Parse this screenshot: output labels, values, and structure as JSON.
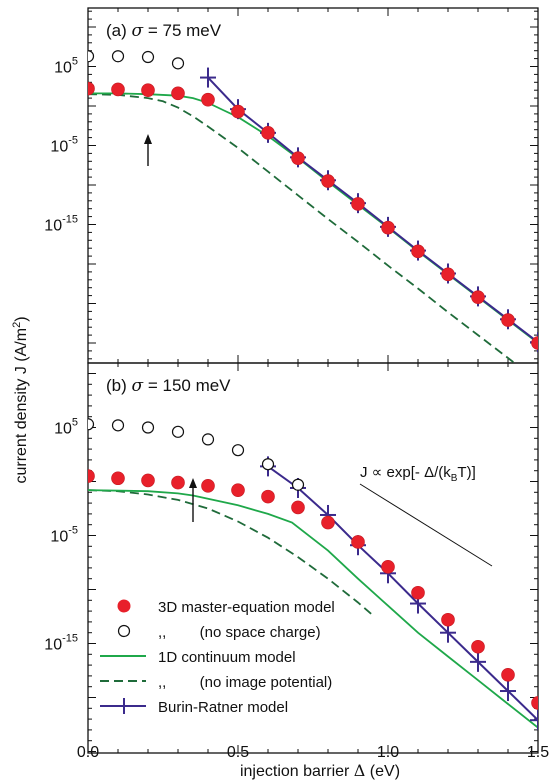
{
  "chart_data": [
    {
      "type": "line",
      "panel_label": "(a) σ = 75 meV",
      "panel_label_prefix": "(a) ",
      "panel_label_sigma": "σ",
      "panel_label_rest": " = 75 meV",
      "x_range": [
        0,
        1.5
      ],
      "y_scale": "log",
      "y_range_log10": [
        -22,
        10
      ],
      "y_tick_exponents": [
        5,
        -5,
        -15
      ],
      "arrow_x": 0.2,
      "series": [
        {
          "key": "me3d",
          "name": "3D master-equation model",
          "style": "filled-circle",
          "color": "#e8202a",
          "x": [
            0,
            0.1,
            0.2,
            0.3,
            0.4,
            0.5,
            0.6,
            0.7,
            0.8,
            0.9,
            1.0,
            1.1,
            1.2,
            1.3,
            1.4,
            1.5
          ],
          "log10_y": [
            2.2,
            2.1,
            2.0,
            1.6,
            0.8,
            -0.7,
            -3.4,
            -6.6,
            -9.5,
            -12.4,
            -15.4,
            -18.4,
            -21.3,
            -24.2,
            -27.1,
            -30.0
          ]
        },
        {
          "key": "me3d_nsc",
          "name": "(no space charge)",
          "style": "open-circle",
          "color": "#111111",
          "x": [
            0,
            0.1,
            0.2,
            0.3
          ],
          "log10_y": [
            6.3,
            6.3,
            6.2,
            5.4
          ]
        },
        {
          "key": "cont1d",
          "name": "1D continuum model",
          "style": "solid",
          "color": "#1fa84a",
          "x": [
            0,
            0.1,
            0.2,
            0.3,
            0.35,
            0.4,
            0.45,
            0.5,
            0.6,
            0.7,
            0.8,
            0.9,
            1.0,
            1.1,
            1.2,
            1.3,
            1.4,
            1.5
          ],
          "log10_y": [
            1.6,
            1.6,
            1.5,
            1.3,
            1.0,
            0.4,
            -0.5,
            -1.4,
            -3.8,
            -6.6,
            -9.6,
            -12.5,
            -15.4,
            -18.4,
            -21.3,
            -24.2,
            -27.1,
            -30.0
          ]
        },
        {
          "key": "cont1d_nip",
          "name": "(no image potential)",
          "style": "dashed",
          "color": "#1f6b3a",
          "x": [
            0,
            0.1,
            0.2,
            0.25,
            0.3,
            0.35,
            0.4,
            0.5,
            0.6,
            0.7,
            0.8,
            0.9,
            1.0,
            1.1,
            1.2,
            1.3,
            1.4,
            1.5
          ],
          "log10_y": [
            1.5,
            1.4,
            1.0,
            0.6,
            -0.2,
            -1.3,
            -2.6,
            -5.3,
            -8.3,
            -11.3,
            -14.3,
            -17.2,
            -20.2,
            -23.1,
            -26.1,
            -29.0,
            -31.9,
            -34.8
          ]
        },
        {
          "key": "br",
          "name": "Burin-Ratner model",
          "style": "solid-cross",
          "color": "#3b2a8c",
          "x": [
            0.4,
            0.5,
            0.6,
            0.7,
            0.8,
            0.9,
            1.0,
            1.1,
            1.2,
            1.3,
            1.4,
            1.5
          ],
          "log10_y": [
            3.6,
            -0.4,
            -3.4,
            -6.5,
            -9.4,
            -12.3,
            -15.3,
            -18.3,
            -21.2,
            -24.1,
            -27.0,
            -29.9
          ]
        }
      ]
    },
    {
      "type": "line",
      "panel_label": "(b) σ = 150 meV",
      "panel_label_prefix": "(b) ",
      "panel_label_sigma": "σ",
      "panel_label_rest": " = 150 meV",
      "x_range": [
        0,
        1.5
      ],
      "y_scale": "log",
      "y_range_log10": [
        -22,
        10
      ],
      "y_tick_exponents": [
        5,
        -5,
        -15
      ],
      "arrow_x": 0.35,
      "slope_annotation": "J ∝ exp[- Δ/(kBT)]",
      "series": [
        {
          "key": "me3d",
          "name": "3D master-equation model",
          "style": "filled-circle",
          "color": "#e8202a",
          "x": [
            0,
            0.1,
            0.2,
            0.3,
            0.4,
            0.5,
            0.6,
            0.7,
            0.8,
            0.9,
            1.0,
            1.1,
            1.2,
            1.3,
            1.4,
            1.5
          ],
          "log10_y": [
            0.5,
            0.3,
            0.1,
            -0.1,
            -0.4,
            -0.8,
            -1.4,
            -2.4,
            -3.8,
            -5.6,
            -7.9,
            -10.3,
            -12.8,
            -15.3,
            -17.9,
            -20.5
          ]
        },
        {
          "key": "me3d_nsc",
          "name": "(no space charge)",
          "style": "open-circle",
          "color": "#111111",
          "x": [
            0,
            0.1,
            0.2,
            0.3,
            0.4,
            0.5,
            0.6,
            0.7
          ],
          "log10_y": [
            5.3,
            5.2,
            5.0,
            4.6,
            3.9,
            2.9,
            1.6,
            -0.3
          ]
        },
        {
          "key": "cont1d",
          "name": "1D continuum model",
          "style": "solid",
          "color": "#1fa84a",
          "x": [
            0,
            0.2,
            0.3,
            0.35,
            0.4,
            0.5,
            0.6,
            0.68,
            0.8,
            0.9,
            1.0,
            1.1,
            1.2,
            1.3,
            1.4,
            1.5
          ],
          "log10_y": [
            -0.8,
            -0.9,
            -1.1,
            -1.3,
            -1.6,
            -2.2,
            -3.0,
            -3.8,
            -6.4,
            -9.0,
            -11.5,
            -14.0,
            -16.2,
            -18.4,
            -20.6,
            -22.8
          ]
        },
        {
          "key": "cont1d_nip",
          "name": "(no image potential)",
          "style": "dashed",
          "color": "#1f6b3a",
          "x": [
            0,
            0.1,
            0.2,
            0.3,
            0.4,
            0.5,
            0.6,
            0.7,
            0.8,
            0.9,
            0.95
          ],
          "log10_y": [
            -0.8,
            -0.9,
            -1.2,
            -1.7,
            -2.5,
            -3.7,
            -5.2,
            -7.0,
            -9.0,
            -11.2,
            -12.4
          ]
        },
        {
          "key": "br",
          "name": "Burin-Ratner model",
          "style": "solid-cross",
          "color": "#3b2a8c",
          "x": [
            0.6,
            0.7,
            0.8,
            0.9,
            1.0,
            1.1,
            1.2,
            1.3,
            1.4,
            1.5
          ],
          "log10_y": [
            1.4,
            -0.6,
            -3.1,
            -5.9,
            -8.5,
            -11.3,
            -14.0,
            -16.7,
            -19.4,
            -22.1
          ]
        }
      ]
    }
  ],
  "shared": {
    "xlabel_prefix": "injection barrier ",
    "xlabel_symbol": "Δ",
    "xlabel_suffix": " (eV)",
    "ylabel": "current density J (A/m",
    "ylabel_sup": "2",
    "ylabel_close": ")",
    "x_tick_labels": [
      "0.0",
      "0.5",
      "1.0",
      "1.5"
    ],
    "x_tick_values": [
      0,
      0.5,
      1.0,
      1.5
    ],
    "tick_base": "10",
    "legend_labels": {
      "me3d": "3D master-equation model",
      "me3d_nsc": ",,        (no space charge)",
      "cont1d": "1D continuum model",
      "cont1d_nip": ",,        (no image potential)",
      "br": "Burin-Ratner model"
    },
    "legend_order": [
      "me3d",
      "me3d_nsc",
      "cont1d",
      "cont1d_nip",
      "br"
    ],
    "slope_text_main": "J ∝ exp[- Δ/(k",
    "slope_text_sub": "B",
    "slope_text_end": "T)]"
  }
}
